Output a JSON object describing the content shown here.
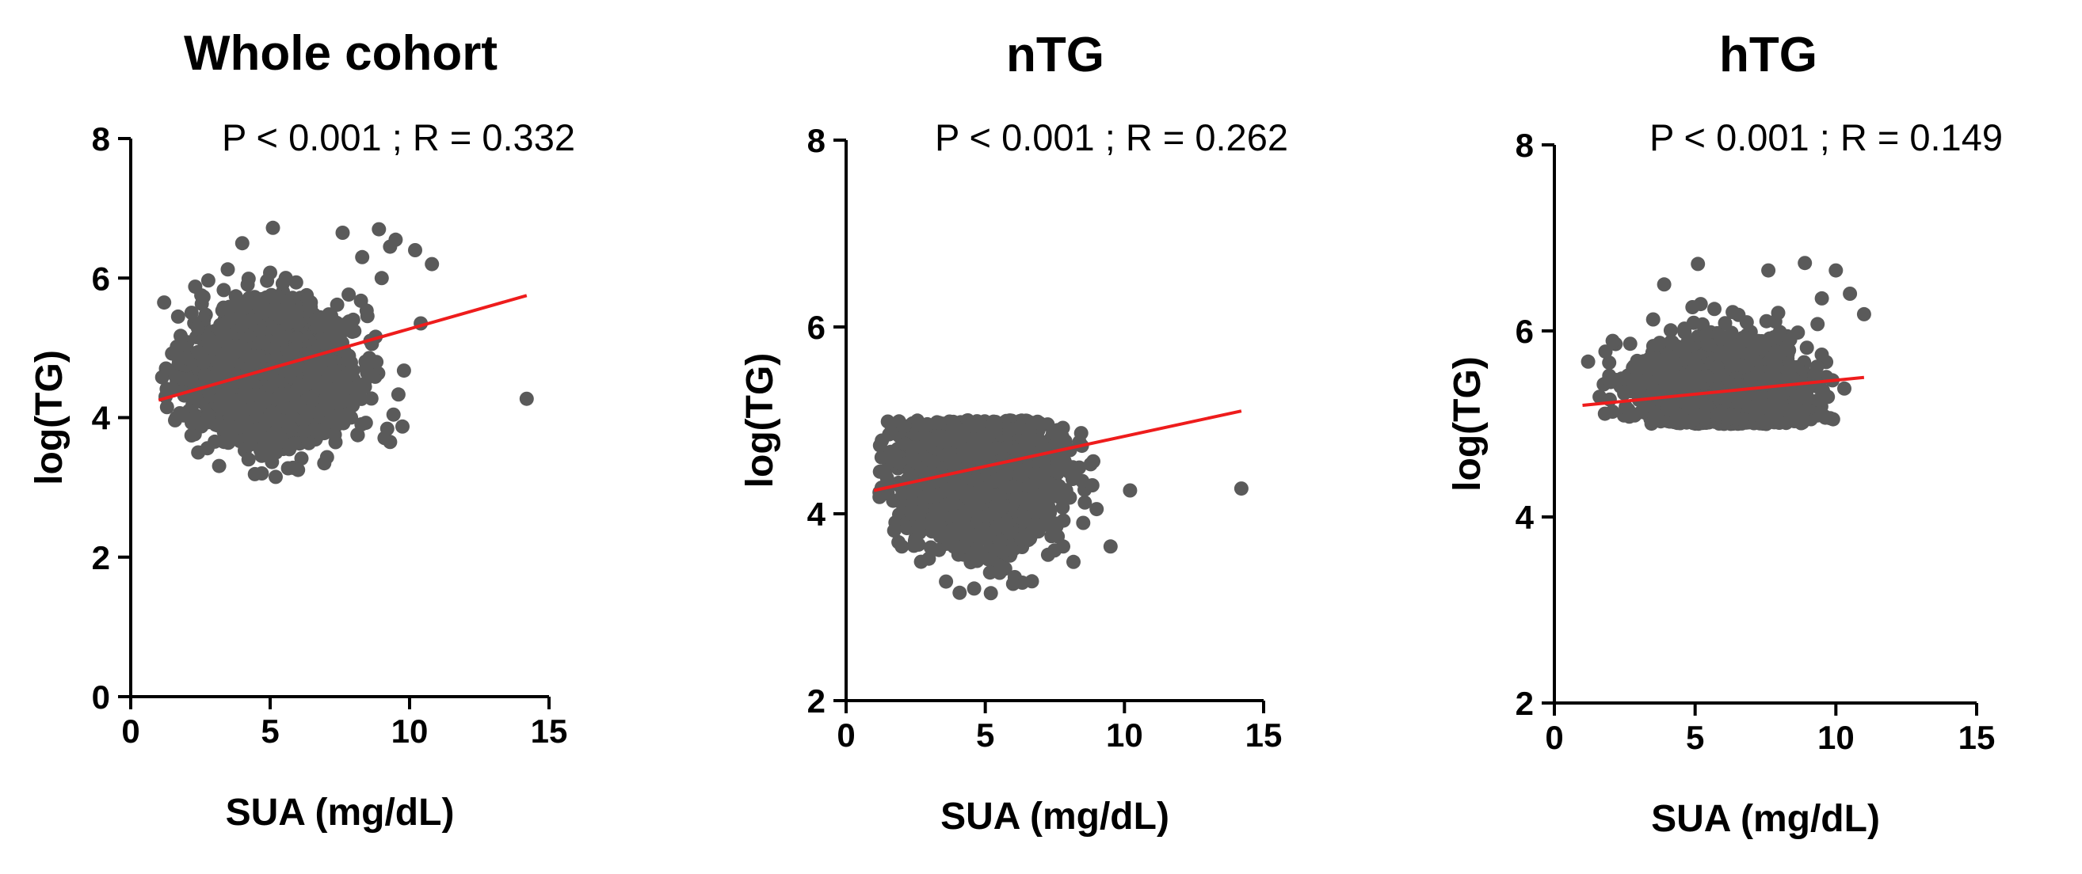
{
  "chart_data": [
    {
      "type": "scatter",
      "title": "Whole cohort",
      "annotation": "P < 0.001 ; R = 0.332",
      "xlabel": "SUA (mg/dL)",
      "ylabel": "log(TG)",
      "xlim": [
        0,
        15
      ],
      "ylim": [
        0,
        8
      ],
      "xticks": [
        "0",
        "5",
        "10",
        "15"
      ],
      "yticks": [
        "0",
        "2",
        "4",
        "6",
        "8"
      ],
      "point_color": "#5a5a5a",
      "line_color": "#ee1c1c",
      "regression": {
        "x": [
          1.0,
          14.2
        ],
        "y": [
          4.25,
          5.75
        ]
      },
      "cloud": {
        "x_center": 5.0,
        "x_spread": 1.4,
        "y_center": 4.65,
        "y_spread": 0.45,
        "y_min": 3.15,
        "y_max": 6.7,
        "x_min": 1.0,
        "x_max": 9.8
      },
      "outliers": [
        {
          "x": 14.2,
          "y": 4.27
        },
        {
          "x": 8.9,
          "y": 6.7
        },
        {
          "x": 9.5,
          "y": 6.55
        },
        {
          "x": 10.2,
          "y": 6.4
        },
        {
          "x": 10.8,
          "y": 6.2
        },
        {
          "x": 9.3,
          "y": 6.45
        },
        {
          "x": 1.2,
          "y": 5.65
        },
        {
          "x": 1.3,
          "y": 4.15
        },
        {
          "x": 10.4,
          "y": 5.35
        },
        {
          "x": 9.3,
          "y": 3.65
        },
        {
          "x": 5.1,
          "y": 6.72
        },
        {
          "x": 4.0,
          "y": 6.5
        },
        {
          "x": 5.2,
          "y": 3.15
        },
        {
          "x": 4.7,
          "y": 3.2
        },
        {
          "x": 6.0,
          "y": 3.25
        },
        {
          "x": 7.6,
          "y": 6.65
        },
        {
          "x": 8.3,
          "y": 6.3
        },
        {
          "x": 9.0,
          "y": 6.0
        }
      ]
    },
    {
      "type": "scatter",
      "title": "nTG",
      "annotation": "P < 0.001 ; R = 0.262",
      "xlabel": "SUA (mg/dL)",
      "ylabel": "log(TG)",
      "xlim": [
        0,
        15
      ],
      "ylim": [
        2,
        8
      ],
      "xticks": [
        "0",
        "5",
        "10",
        "15"
      ],
      "yticks": [
        "2",
        "4",
        "6",
        "8"
      ],
      "point_color": "#5a5a5a",
      "line_color": "#ee1c1c",
      "regression": {
        "x": [
          1.0,
          14.2
        ],
        "y": [
          4.25,
          5.1
        ]
      },
      "cloud": {
        "x_center": 4.8,
        "x_spread": 1.35,
        "y_center": 4.45,
        "y_spread": 0.4,
        "y_min": 3.15,
        "y_max": 5.0,
        "x_min": 1.2,
        "x_max": 9.5
      },
      "outliers": [
        {
          "x": 14.2,
          "y": 4.27
        },
        {
          "x": 9.5,
          "y": 3.65
        },
        {
          "x": 10.2,
          "y": 4.25
        },
        {
          "x": 1.2,
          "y": 4.18
        },
        {
          "x": 5.2,
          "y": 3.15
        },
        {
          "x": 4.6,
          "y": 3.2
        },
        {
          "x": 6.0,
          "y": 3.25
        },
        {
          "x": 7.8,
          "y": 3.65
        },
        {
          "x": 2.0,
          "y": 3.65
        },
        {
          "x": 9.0,
          "y": 4.05
        }
      ]
    },
    {
      "type": "scatter",
      "title": "hTG",
      "annotation": "P < 0.001 ; R = 0.149",
      "xlabel": "SUA (mg/dL)",
      "ylabel": "log(TG)",
      "xlim": [
        0,
        15
      ],
      "ylim": [
        2,
        8
      ],
      "xticks": [
        "0",
        "5",
        "10",
        "15"
      ],
      "yticks": [
        "2",
        "4",
        "6",
        "8"
      ],
      "point_color": "#5a5a5a",
      "line_color": "#ee1c1c",
      "regression": {
        "x": [
          1.0,
          11.0
        ],
        "y": [
          5.2,
          5.5
        ]
      },
      "cloud": {
        "x_center": 6.0,
        "x_spread": 1.5,
        "y_center": 5.25,
        "y_spread": 0.3,
        "y_min": 5.0,
        "y_max": 6.5,
        "x_min": 1.5,
        "x_max": 10.0
      },
      "outliers": [
        {
          "x": 1.2,
          "y": 5.67
        },
        {
          "x": 11.0,
          "y": 6.18
        },
        {
          "x": 8.9,
          "y": 6.73
        },
        {
          "x": 10.0,
          "y": 6.65
        },
        {
          "x": 10.5,
          "y": 6.4
        },
        {
          "x": 9.5,
          "y": 6.35
        },
        {
          "x": 5.1,
          "y": 6.72
        },
        {
          "x": 3.9,
          "y": 6.5
        },
        {
          "x": 7.6,
          "y": 6.65
        },
        {
          "x": 10.3,
          "y": 5.38
        },
        {
          "x": 2.0,
          "y": 5.45
        },
        {
          "x": 9.9,
          "y": 5.05
        }
      ]
    }
  ]
}
